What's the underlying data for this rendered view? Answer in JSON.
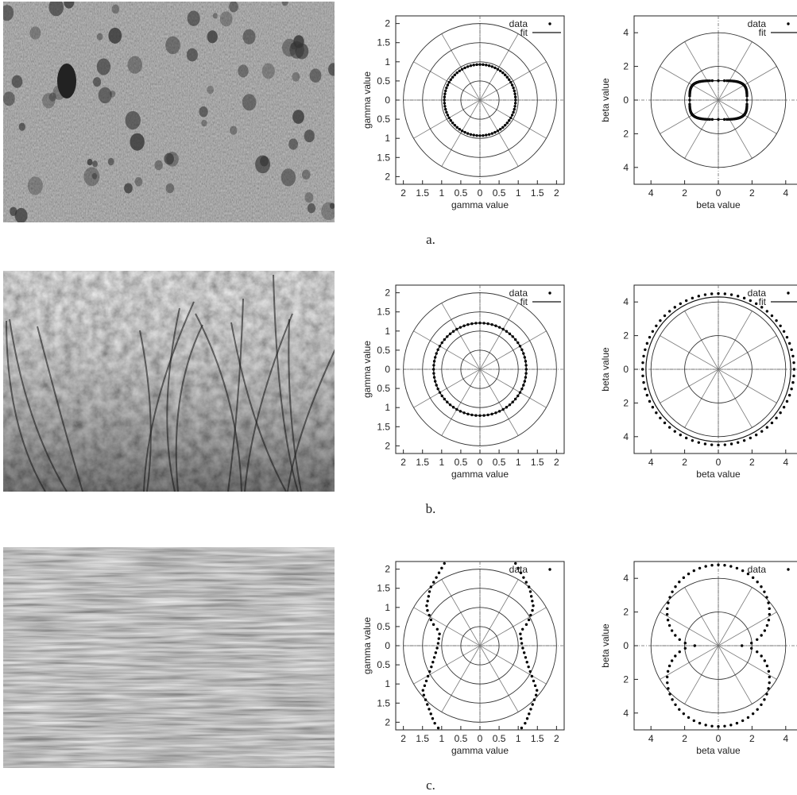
{
  "captions": [
    "a.",
    "b.",
    "c."
  ],
  "photos": [
    {
      "texture": "porous-surface"
    },
    {
      "texture": "foliage"
    },
    {
      "texture": "straw"
    }
  ],
  "chart_data": [
    {
      "type": "scatter",
      "coord": "polar",
      "xlabel": "gamma value",
      "ylabel": "gamma value",
      "range": 2.2,
      "rings": [
        0.5,
        1,
        1.5,
        2
      ],
      "spokes_deg": 30,
      "ticks": [
        2,
        1.5,
        1,
        0.5,
        0,
        0.5,
        1,
        1.5,
        2
      ],
      "legend": [
        {
          "label": "data",
          "kind": "points"
        },
        {
          "label": "fit",
          "kind": "line"
        }
      ],
      "series": [
        {
          "name": "data",
          "shape": "circle",
          "points": 72,
          "r": 0.93
        },
        {
          "name": "fit",
          "shape": "circle",
          "r": 0.93
        }
      ]
    },
    {
      "type": "scatter",
      "coord": "polar",
      "xlabel": "beta value",
      "ylabel": "beta value",
      "range": 5,
      "rings": [
        2,
        4
      ],
      "spokes_deg": 30,
      "ticks": [
        4,
        2,
        0,
        2,
        4
      ],
      "legend": [
        {
          "label": "data",
          "kind": "points"
        },
        {
          "label": "fit",
          "kind": "line"
        }
      ],
      "series": [
        {
          "name": "data",
          "shape": "rounded",
          "points": 140,
          "rx": 1.7,
          "ry": 1.15,
          "power": 4
        },
        {
          "name": "fit",
          "shape": "rounded",
          "rx": 1.7,
          "ry": 1.15,
          "power": 4
        }
      ]
    },
    {
      "type": "scatter",
      "coord": "polar",
      "xlabel": "gamma value",
      "ylabel": "gamma value",
      "range": 2.2,
      "rings": [
        0.5,
        1,
        1.5,
        2
      ],
      "spokes_deg": 30,
      "ticks": [
        2,
        1.5,
        1,
        0.5,
        0,
        0.5,
        1,
        1.5,
        2
      ],
      "legend": [
        {
          "label": "data",
          "kind": "points"
        },
        {
          "label": "fit",
          "kind": "line"
        }
      ],
      "series": [
        {
          "name": "data",
          "shape": "circle",
          "points": 72,
          "r": 1.21
        },
        {
          "name": "fit",
          "shape": "circle",
          "r": 1.21
        }
      ]
    },
    {
      "type": "scatter",
      "coord": "polar",
      "xlabel": "beta value",
      "ylabel": "beta value",
      "range": 5,
      "rings": [
        2,
        4
      ],
      "spokes_deg": 30,
      "ticks": [
        4,
        2,
        0,
        2,
        4
      ],
      "legend": [
        {
          "label": "data",
          "kind": "points"
        },
        {
          "label": "fit",
          "kind": "line"
        }
      ],
      "series": [
        {
          "name": "data",
          "shape": "circle",
          "points": 72,
          "r": 4.5
        },
        {
          "name": "fit",
          "shape": "circle",
          "r": 4.3
        }
      ]
    },
    {
      "type": "scatter",
      "coord": "polar",
      "xlabel": "gamma value",
      "ylabel": "gamma value",
      "range": 2.2,
      "rings": [
        0.5,
        1,
        1.5,
        2
      ],
      "spokes_deg": 30,
      "ticks": [
        2,
        1.5,
        1,
        0.5,
        0,
        0.5,
        1,
        1.5,
        2
      ],
      "legend": [
        {
          "label": "data",
          "kind": "points"
        }
      ],
      "series": [
        {
          "name": "data",
          "shape": "side-curves",
          "points": 72,
          "profile": [
            [
              2.2,
              0.9
            ],
            [
              1.5,
              1.3
            ],
            [
              1.0,
              1.4
            ],
            [
              0.6,
              1.25
            ],
            [
              0.35,
              1.05
            ],
            [
              0,
              1.1
            ],
            [
              -0.5,
              1.25
            ],
            [
              -1.2,
              1.5
            ],
            [
              -2.0,
              1.2
            ],
            [
              -2.2,
              1.05
            ]
          ]
        }
      ]
    },
    {
      "type": "scatter",
      "coord": "polar",
      "xlabel": "beta value",
      "ylabel": "beta value",
      "range": 5,
      "rings": [
        2,
        4
      ],
      "spokes_deg": 30,
      "ticks": [
        4,
        2,
        0,
        2,
        4
      ],
      "legend": [
        {
          "label": "data",
          "kind": "points"
        }
      ],
      "series": [
        {
          "name": "data",
          "shape": "lobes",
          "points": 80,
          "near": 1.4,
          "far": 4.8
        }
      ]
    }
  ]
}
